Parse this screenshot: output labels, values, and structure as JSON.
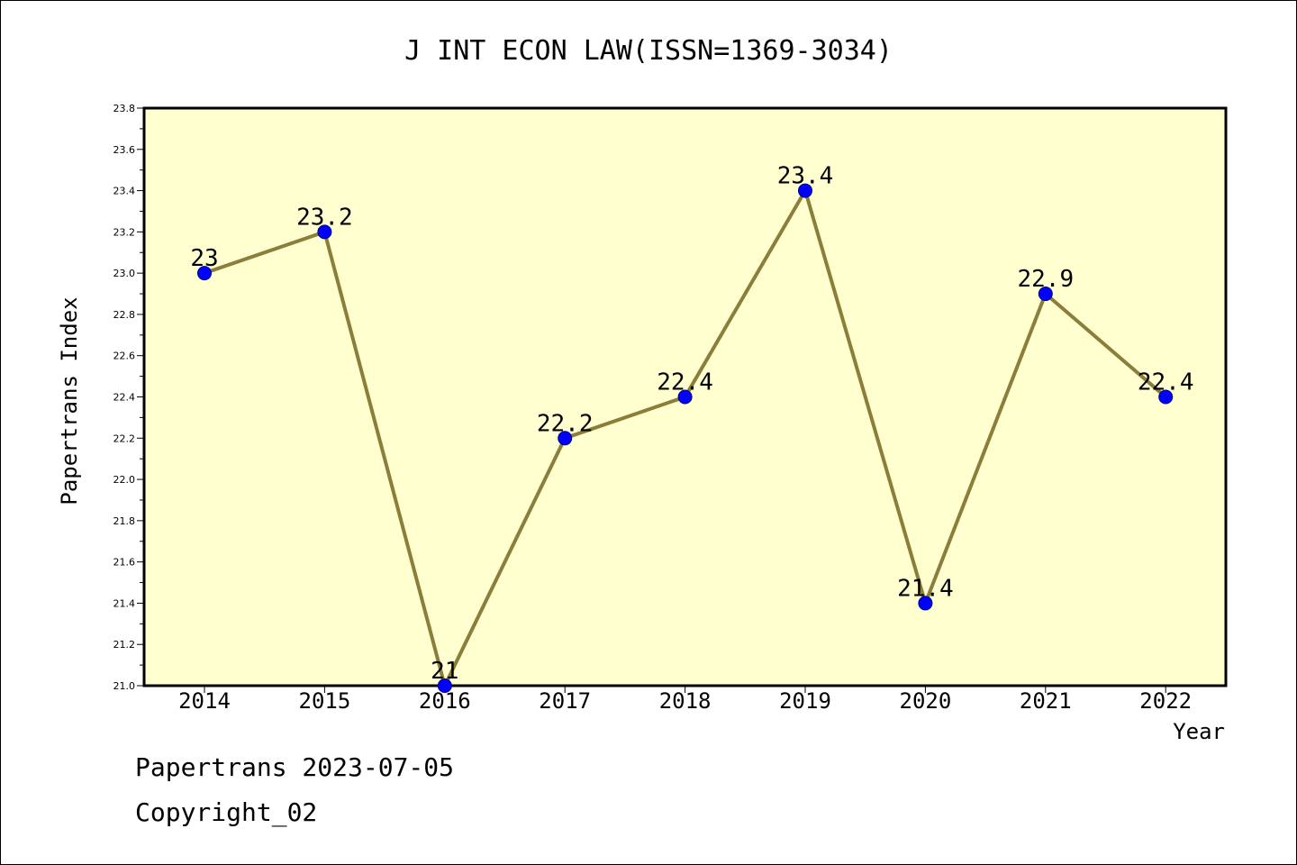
{
  "footer": {
    "line1": "Papertrans 2023-07-05",
    "line2": "Copyright_02"
  },
  "chart_data": {
    "type": "line",
    "title": "J INT ECON LAW(ISSN=1369-3034)",
    "xlabel": "Year",
    "ylabel": "Papertrans Index",
    "categories": [
      "2014",
      "2015",
      "2016",
      "2017",
      "2018",
      "2019",
      "2020",
      "2021",
      "2022"
    ],
    "values": [
      23,
      23.2,
      21,
      22.2,
      22.4,
      23.4,
      21.4,
      22.9,
      22.4
    ],
    "data_labels": [
      "23",
      "23.2",
      "21",
      "22.2",
      "22.4",
      "23.4",
      "21.4",
      "22.9",
      "22.4"
    ],
    "ylim": [
      21.0,
      23.8
    ],
    "yticks": [
      "21.0",
      "21.2",
      "21.4",
      "21.6",
      "21.8",
      "22.0",
      "22.2",
      "22.4",
      "22.6",
      "22.8",
      "23.0",
      "23.2",
      "23.4",
      "23.6",
      "23.8"
    ],
    "grid": false,
    "legend": "none",
    "colors": {
      "plot_background": "#ffffd0",
      "line": "#8b7d3a",
      "marker": "#0000ff",
      "axis": "#000000"
    }
  }
}
